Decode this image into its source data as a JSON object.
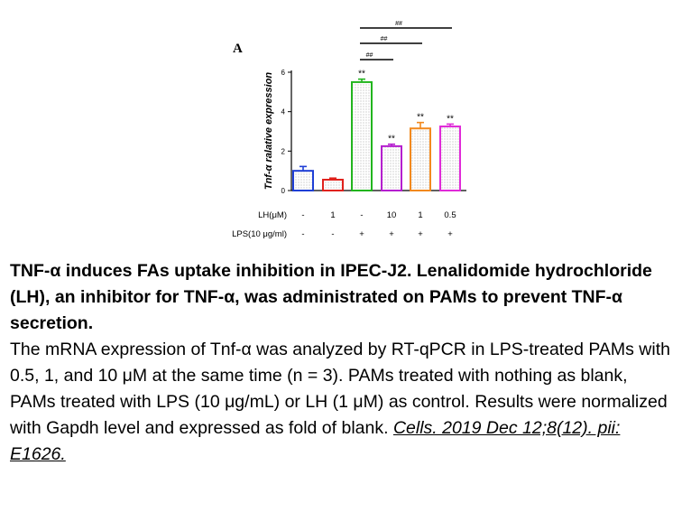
{
  "chart_data": {
    "type": "bar",
    "panel_label": "A",
    "ylabel": "Tnf-α ralative expression",
    "ylim": [
      0,
      6
    ],
    "yticks": [
      0,
      2,
      4,
      6
    ],
    "bars": [
      {
        "value": 1.0,
        "error": 0.22,
        "color": "#1f3fd6",
        "sig": ""
      },
      {
        "value": 0.55,
        "error": 0.08,
        "color": "#e0221d",
        "sig": ""
      },
      {
        "value": 5.5,
        "error": 0.15,
        "color": "#22b51e",
        "sig": "**"
      },
      {
        "value": 2.25,
        "error": 0.1,
        "color": "#b51fcf",
        "sig": "**"
      },
      {
        "value": 3.15,
        "error": 0.3,
        "color": "#f2891d",
        "sig": "**"
      },
      {
        "value": 3.25,
        "error": 0.12,
        "color": "#e02ad8",
        "sig": "**"
      }
    ],
    "comparisons": [
      {
        "from": 2,
        "to": 3,
        "label": "##"
      },
      {
        "from": 2,
        "to": 4,
        "label": "##"
      },
      {
        "from": 2,
        "to": 5,
        "label": "##"
      }
    ],
    "treatment_rows": [
      {
        "label": "LH(μM)",
        "values": [
          "-",
          "1",
          "-",
          "10",
          "1",
          "0.5"
        ]
      },
      {
        "label": "LPS(10 μg/ml)",
        "values": [
          "-",
          "-",
          "+",
          "+",
          "+",
          "+"
        ]
      }
    ]
  },
  "caption": {
    "title": "TNF-α induces FAs uptake inhibition in IPEC-J2. Lenalidomide hydrochloride (LH), an inhibitor for TNF-α, was administrated on PAMs to prevent TNF-α secretion.",
    "body": "The mRNA expression of Tnf-α was analyzed by RT-qPCR in LPS-treated PAMs with 0.5, 1, and 10 μM at the same time (n = 3). PAMs treated with nothing as blank, PAMs treated with LPS (10 μg/mL) or LH (1 μM) as control. Results were normalized with Gapdh level and expressed as fold of blank.",
    "citation": "Cells. 2019 Dec 12;8(12). pii: E1626."
  }
}
